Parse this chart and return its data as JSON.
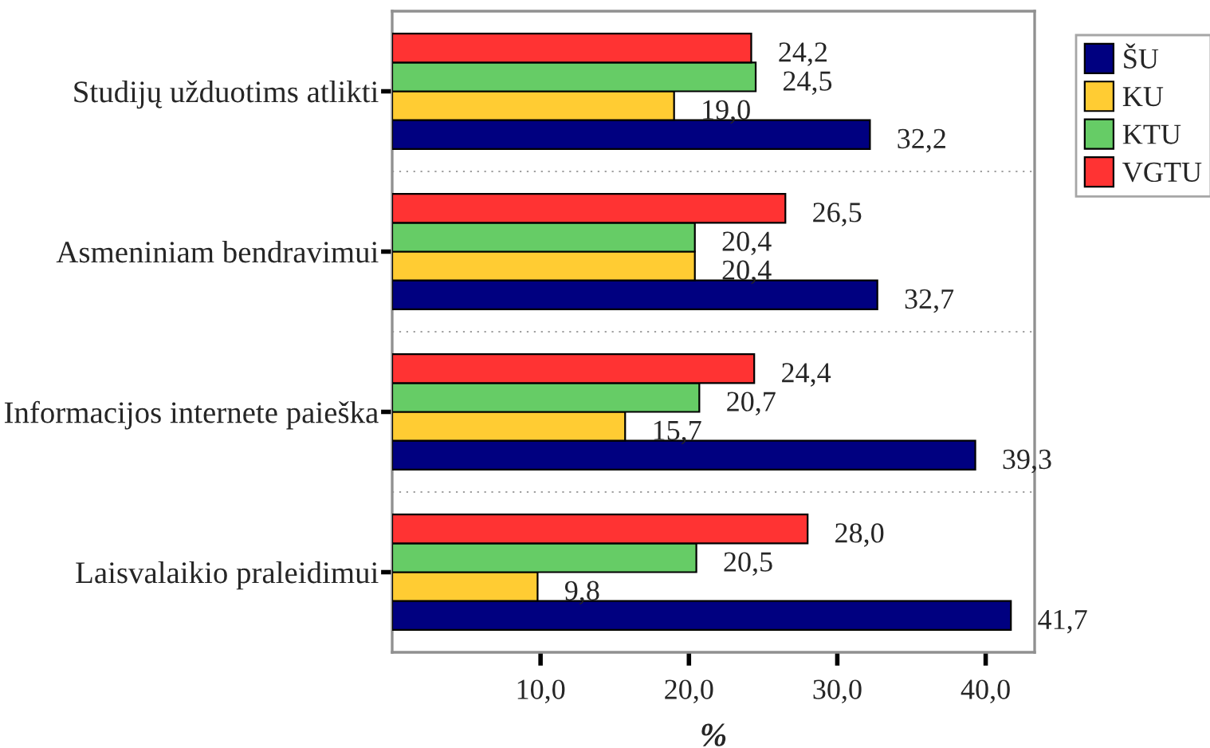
{
  "chart_data": {
    "type": "bar",
    "orientation": "horizontal",
    "categories": [
      "Studijų užduotims atlikti",
      "Asmeniniam bendravimui",
      "Informacijos internete paieška",
      "Laisvalaikio praleidimui"
    ],
    "series": [
      {
        "name": "ŠU",
        "color": "#000080",
        "values": [
          32.2,
          32.7,
          39.3,
          41.7
        ],
        "value_labels": [
          "32,2",
          "32,7",
          "39,3",
          "41,7"
        ]
      },
      {
        "name": "KU",
        "color": "#ffcc33",
        "values": [
          19.0,
          20.4,
          15.7,
          9.8
        ],
        "value_labels": [
          "19,0",
          "20,4",
          "15,7",
          "9,8"
        ]
      },
      {
        "name": "KTU",
        "color": "#66cc66",
        "values": [
          24.5,
          20.4,
          20.7,
          20.5
        ],
        "value_labels": [
          "24,5",
          "20,4",
          "20,7",
          "20,5"
        ]
      },
      {
        "name": "VGTU",
        "color": "#ff3333",
        "values": [
          24.2,
          26.5,
          24.4,
          28.0
        ],
        "value_labels": [
          "24,2",
          "26,5",
          "24,4",
          "28,0"
        ]
      }
    ],
    "xlim": [
      0,
      43.3
    ],
    "xticks": [
      {
        "value": 10,
        "label": "10,0"
      },
      {
        "value": 20,
        "label": "20,0"
      },
      {
        "value": 30,
        "label": "30,0"
      },
      {
        "value": 40,
        "label": "40,0"
      }
    ],
    "xlabel": "%",
    "grid": "y",
    "legend": "top right"
  }
}
